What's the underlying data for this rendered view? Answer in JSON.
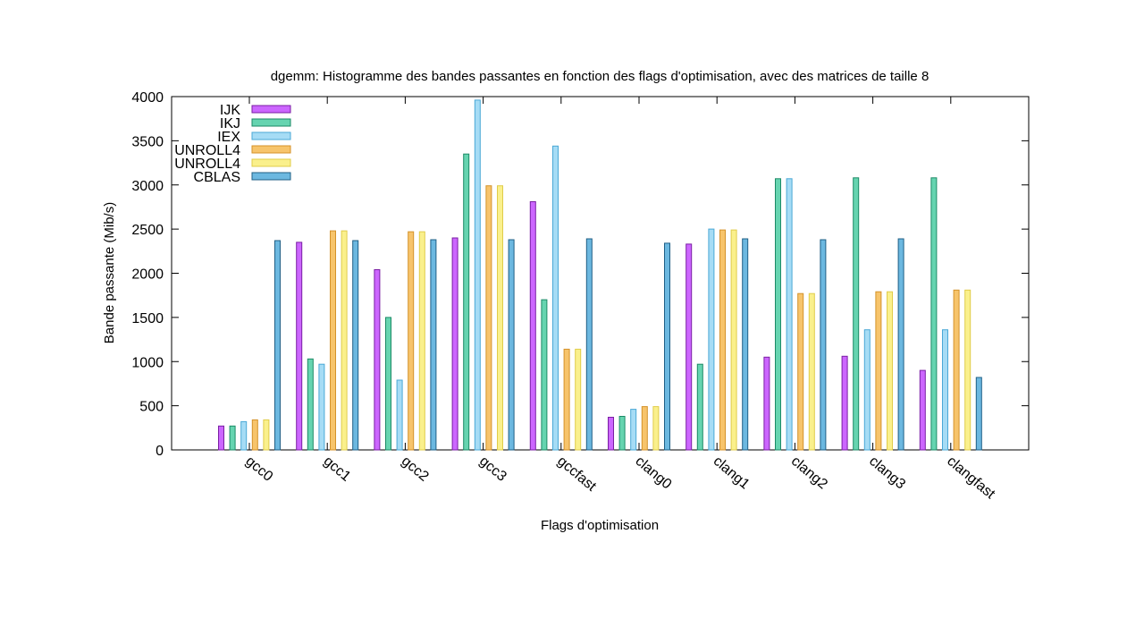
{
  "chart_data": {
    "type": "bar",
    "title": "dgemm: Histogramme des bandes passantes en fonction des flags d'optimisation,  avec des matrices de taille 8",
    "xlabel": "Flags d'optimisation",
    "ylabel": "Bande passante (Mib/s)",
    "ylim": [
      0,
      4000
    ],
    "yticks": [
      0,
      500,
      1000,
      1500,
      2000,
      2500,
      3000,
      3500,
      4000
    ],
    "grid": false,
    "legend_position": "top-left",
    "categories": [
      "gcc0",
      "gcc1",
      "gcc2",
      "gcc3",
      "gccfast",
      "clang0",
      "clang1",
      "clang2",
      "clang3",
      "clangfast"
    ],
    "series": [
      {
        "name": "IJK",
        "color": "#cc66ff",
        "stroke": "#7a1fa3",
        "values": [
          270,
          2350,
          2040,
          2400,
          2810,
          370,
          2330,
          1050,
          1060,
          900
        ]
      },
      {
        "name": "IKJ",
        "color": "#66d4b0",
        "stroke": "#1c8a66",
        "values": [
          270,
          1030,
          1500,
          3350,
          1700,
          380,
          970,
          3070,
          3080,
          3080
        ]
      },
      {
        "name": "IEX",
        "color": "#a6dcf5",
        "stroke": "#4aa8d6",
        "values": [
          320,
          970,
          790,
          3960,
          3440,
          460,
          2500,
          3070,
          1360,
          1360
        ]
      },
      {
        "name": "UNROLL4",
        "color": "#f7c46b",
        "stroke": "#d4922a",
        "values": [
          340,
          2480,
          2470,
          2990,
          1140,
          490,
          2490,
          1770,
          1790,
          1810
        ]
      },
      {
        "name": "UNROLL4",
        "color": "#faf08c",
        "stroke": "#e0cc4a",
        "values": [
          340,
          2480,
          2470,
          2990,
          1140,
          490,
          2490,
          1770,
          1790,
          1810
        ]
      },
      {
        "name": "CBLAS",
        "color": "#6cb8e0",
        "stroke": "#1f5f86",
        "values": [
          2370,
          2370,
          2380,
          2380,
          2390,
          2340,
          2390,
          2380,
          2390,
          820
        ]
      }
    ]
  }
}
